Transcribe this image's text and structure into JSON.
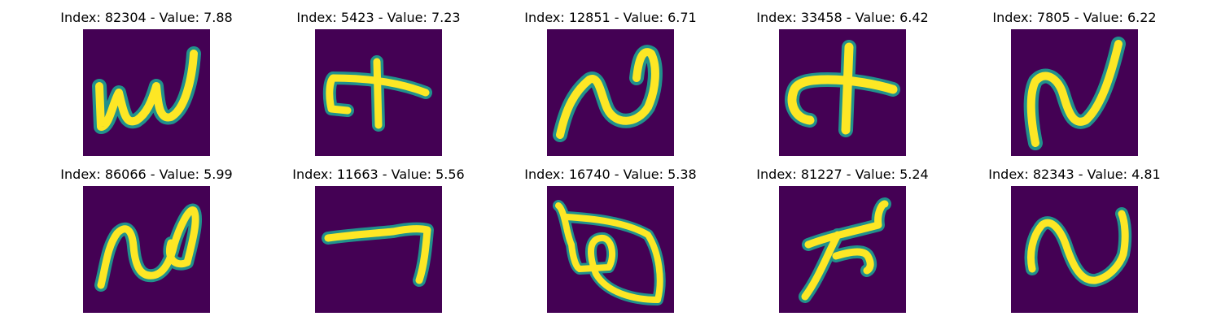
{
  "figure": {
    "background": "#ffffff",
    "image_colormap": "viridis",
    "panels": [
      {
        "title": "Index: 82304 - Value: 7.88"
      },
      {
        "title": "Index: 5423 - Value: 7.23"
      },
      {
        "title": "Index: 12851 - Value: 6.71"
      },
      {
        "title": "Index: 33458 - Value: 6.42"
      },
      {
        "title": "Index: 7805 - Value: 6.22"
      },
      {
        "title": "Index: 86066 - Value: 5.99"
      },
      {
        "title": "Index: 11663 - Value: 5.56"
      },
      {
        "title": "Index: 16740 - Value: 5.38"
      },
      {
        "title": "Index: 81227 - Value: 5.24"
      },
      {
        "title": "Index: 82343 - Value: 4.81"
      }
    ],
    "colors": {
      "background": "#440154",
      "mid": "#21918c",
      "mid_light": "#5ec962",
      "stroke": "#fde725"
    }
  }
}
